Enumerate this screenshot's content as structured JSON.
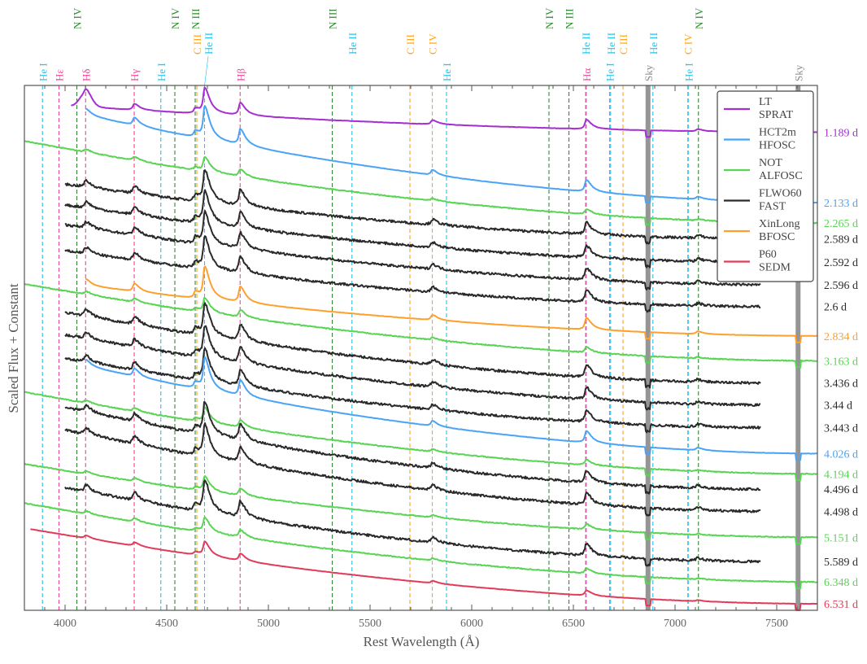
{
  "chart_data": {
    "type": "line",
    "xlabel": "Rest Wavelength (Å)",
    "ylabel": "Scaled Flux + Constant",
    "xlim": [
      3800,
      7700
    ],
    "ylim": [
      0,
      20.2
    ],
    "x_ticks": [
      4000,
      4500,
      5000,
      5500,
      6000,
      6500,
      7000,
      7500
    ],
    "minor_tick_step": 100,
    "grid": false,
    "legend_position": "top-right",
    "legend": [
      {
        "label_1": "LT",
        "label_2": "SPRAT",
        "color": "#a52fd0"
      },
      {
        "label_1": "HCT2m",
        "label_2": "HFOSC",
        "color": "#4aa3f7"
      },
      {
        "label_1": "NOT",
        "label_2": "ALFOSC",
        "color": "#5ad455"
      },
      {
        "label_1": "FLWO60",
        "label_2": "FAST",
        "color": "#2a2a2a"
      },
      {
        "label_1": "XinLong",
        "label_2": "BFOSC",
        "color": "#ffa02e"
      },
      {
        "label_1": "P60",
        "label_2": "SEDM",
        "color": "#e03c5a"
      }
    ],
    "series": [
      {
        "phase": "1.189 d",
        "instrument": 0,
        "range": [
          4030,
          7700
        ],
        "flux_blue": 19.4,
        "flux_red": 18.4
      },
      {
        "phase": "2.133 d",
        "instrument": 1,
        "range": [
          4100,
          7700
        ],
        "flux_blue": 19.06,
        "flux_red": 15.69
      },
      {
        "phase": "2.265 d",
        "instrument": 2,
        "range": [
          3800,
          7700
        ],
        "flux_blue": 18.06,
        "flux_red": 14.9
      },
      {
        "phase": "2.589 d",
        "instrument": 3,
        "range": [
          4000,
          7420
        ],
        "flux_blue": 16.4,
        "flux_red": 14.3
      },
      {
        "phase": "2.592 d",
        "instrument": 3,
        "range": [
          4000,
          7420
        ],
        "flux_blue": 15.6,
        "flux_red": 13.4
      },
      {
        "phase": "2.596 d",
        "instrument": 3,
        "range": [
          4000,
          7420
        ],
        "flux_blue": 14.84,
        "flux_red": 12.53
      },
      {
        "phase": "2.6 d",
        "instrument": 3,
        "range": [
          4000,
          7420
        ],
        "flux_blue": 13.84,
        "flux_red": 11.69
      },
      {
        "phase": "2.834 d",
        "instrument": 4,
        "range": [
          4100,
          7700
        ],
        "flux_blue": 12.5,
        "flux_red": 10.56
      },
      {
        "phase": "3.163 d",
        "instrument": 2,
        "range": [
          3800,
          7700
        ],
        "flux_blue": 12.56,
        "flux_red": 9.6
      },
      {
        "phase": "3.436 d",
        "instrument": 3,
        "range": [
          4000,
          7420
        ],
        "flux_blue": 11.47,
        "flux_red": 8.75
      },
      {
        "phase": "3.44 d",
        "instrument": 3,
        "range": [
          4000,
          7420
        ],
        "flux_blue": 10.6,
        "flux_red": 7.9
      },
      {
        "phase": "3.443 d",
        "instrument": 3,
        "range": [
          4000,
          7420
        ],
        "flux_blue": 9.7,
        "flux_red": 7.03
      },
      {
        "phase": "4.026 d",
        "instrument": 1,
        "range": [
          4100,
          7700
        ],
        "flux_blue": 9.4,
        "flux_red": 6.03
      },
      {
        "phase": "4.194 d",
        "instrument": 2,
        "range": [
          3800,
          7700
        ],
        "flux_blue": 8.4,
        "flux_red": 5.25
      },
      {
        "phase": "4.496 d",
        "instrument": 3,
        "range": [
          4000,
          7420
        ],
        "flux_blue": 7.81,
        "flux_red": 4.66
      },
      {
        "phase": "4.498 d",
        "instrument": 3,
        "range": [
          4000,
          7420
        ],
        "flux_blue": 6.94,
        "flux_red": 3.81
      },
      {
        "phase": "5.151 d",
        "instrument": 2,
        "range": [
          3800,
          7700
        ],
        "flux_blue": 5.63,
        "flux_red": 2.81
      },
      {
        "phase": "5.589 d",
        "instrument": 3,
        "range": [
          4000,
          7420
        ],
        "flux_blue": 4.72,
        "flux_red": 1.875
      },
      {
        "phase": "6.348 d",
        "instrument": 2,
        "range": [
          3800,
          7700
        ],
        "flux_blue": 4.125,
        "flux_red": 1.09
      },
      {
        "phase": "6.531 d",
        "instrument": 5,
        "range": [
          3830,
          7700
        ],
        "flux_blue": 3.125,
        "flux_red": 0.25
      }
    ],
    "line_markers": [
      {
        "label": "He I",
        "wavelength": 3889,
        "color": "#22c3ef",
        "tier": 3
      },
      {
        "label": "Hε",
        "wavelength": 3970,
        "color": "#ff3b9b",
        "tier": 3
      },
      {
        "label": "N IV",
        "wavelength": 4058,
        "color": "#2e8b2e",
        "tier": 1
      },
      {
        "label": "Hδ",
        "wavelength": 4101,
        "color": "#ff3b9b",
        "tier": 3
      },
      {
        "label": "Hγ",
        "wavelength": 4340,
        "color": "#ff3b9b",
        "tier": 3
      },
      {
        "label": "He I",
        "wavelength": 4471,
        "color": "#22c3ef",
        "tier": 3
      },
      {
        "label": "N IV",
        "wavelength": 4540,
        "color": "#2e8b2e",
        "tier": 1
      },
      {
        "label": "N III",
        "wavelength": 4640,
        "color": "#2e8b2e",
        "tier": 1
      },
      {
        "label": "C III",
        "wavelength": 4648,
        "color": "#ffa520",
        "tier": 2
      },
      {
        "label": "He II",
        "wavelength": 4686,
        "color": "#22c3ef",
        "tier": 2
      },
      {
        "label": "Hβ",
        "wavelength": 4861,
        "color": "#ff3b9b",
        "tier": 3
      },
      {
        "label": "N III",
        "wavelength": 5314,
        "color": "#2e8b2e",
        "tier": 1
      },
      {
        "label": "He II",
        "wavelength": 5411,
        "color": "#22c3ef",
        "tier": 2
      },
      {
        "label": "C III",
        "wavelength": 5696,
        "color": "#ffa520",
        "tier": 2
      },
      {
        "label": "C IV",
        "wavelength": 5806,
        "color": "#ffa520",
        "tier": 2
      },
      {
        "label": "He I",
        "wavelength": 5876,
        "color": "#22c3ef",
        "tier": 3
      },
      {
        "label": "N IV",
        "wavelength": 6380,
        "color": "#2e8b2e",
        "tier": 1
      },
      {
        "label": "N III",
        "wavelength": 6478,
        "color": "#2e8b2e",
        "tier": 1
      },
      {
        "label": "He II",
        "wavelength": 6560,
        "color": "#22c3ef",
        "tier": 2
      },
      {
        "label": "Hα",
        "wavelength": 6563,
        "color": "#ff3b9b",
        "tier": 3
      },
      {
        "label": "He I",
        "wavelength": 6678,
        "color": "#22c3ef",
        "tier": 3
      },
      {
        "label": "He II",
        "wavelength": 6683,
        "color": "#22c3ef",
        "tier": 2
      },
      {
        "label": "C III",
        "wavelength": 6744,
        "color": "#ffa520",
        "tier": 2
      },
      {
        "label": "Sky",
        "wavelength": 6867,
        "color": "#8a8a8a",
        "tier": 3,
        "band": true
      },
      {
        "label": "He II",
        "wavelength": 6891,
        "color": "#22c3ef",
        "tier": 2
      },
      {
        "label": "C IV",
        "wavelength": 7062,
        "color": "#ffa520",
        "tier": 2
      },
      {
        "label": "He I",
        "wavelength": 7065,
        "color": "#22c3ef",
        "tier": 3
      },
      {
        "label": "N IV",
        "wavelength": 7115,
        "color": "#2e8b2e",
        "tier": 1
      },
      {
        "label": "Sky",
        "wavelength": 7605,
        "color": "#8a8a8a",
        "tier": 3,
        "band": true
      }
    ]
  }
}
